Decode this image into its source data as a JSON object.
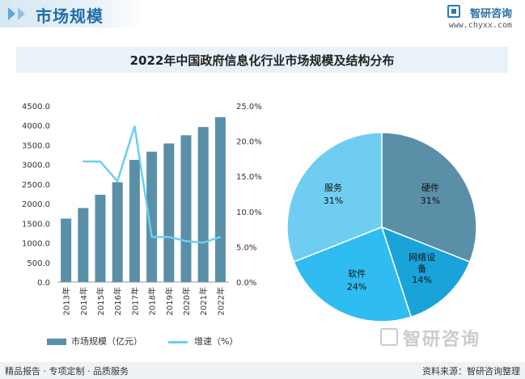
{
  "header": {
    "page_title": "市场规模",
    "brand_name": "智研咨询",
    "brand_url": "www.chyxx.com"
  },
  "chart_title": "2022年中国政府信息化行业市场规模及结构分布",
  "chart_data": [
    {
      "type": "bar",
      "categories": [
        "2013年",
        "2014年",
        "2015年",
        "2016年",
        "2017年",
        "2018年",
        "2019年",
        "2020年",
        "2021年",
        "2022年"
      ],
      "series": [
        {
          "name": "市场规模（亿元）",
          "axis": "left",
          "values": [
            1620,
            1890,
            2230,
            2550,
            3120,
            3330,
            3540,
            3750,
            3960,
            4210
          ],
          "color": "#5a8fa8"
        },
        {
          "name": "增速（%）",
          "type": "line",
          "axis": "right",
          "values": [
            null,
            17.1,
            17.1,
            14.3,
            22.1,
            6.4,
            6.4,
            5.8,
            5.6,
            6.4
          ],
          "color": "#6bcff0"
        }
      ],
      "y_left": {
        "ylim": [
          0,
          4500
        ],
        "ticks": [
          "0.0",
          "500.0",
          "1000.0",
          "1500.0",
          "2000.0",
          "2500.0",
          "3000.0",
          "3500.0",
          "4000.0",
          "4500.0"
        ]
      },
      "y_right": {
        "ylim": [
          0,
          25
        ],
        "ticks": [
          "0.0%",
          "5.0%",
          "10.0%",
          "15.0%",
          "20.0%",
          "25.0%"
        ]
      },
      "legend_position": "bottom",
      "grid": false
    },
    {
      "type": "pie",
      "slices": [
        {
          "label": "硬件",
          "pct_label": "31%",
          "value": 31,
          "color": "#5a8fa8"
        },
        {
          "label": "网络设备",
          "pct_label": "14%",
          "value": 14,
          "color": "#1aa3d9"
        },
        {
          "label": "软件",
          "pct_label": "24%",
          "value": 24,
          "color": "#2fbcf0"
        },
        {
          "label": "服务",
          "pct_label": "31%",
          "value": 31,
          "color": "#6fcdf2"
        }
      ]
    }
  ],
  "legend": {
    "bar_label": "市场规模（亿元）",
    "line_label": "增速（%）"
  },
  "footer": {
    "left_text": "精品报告 · 专项定制 · 品质服务",
    "right_text": "资料来源：智研咨询整理"
  },
  "watermark": {
    "text": "智研咨询"
  }
}
